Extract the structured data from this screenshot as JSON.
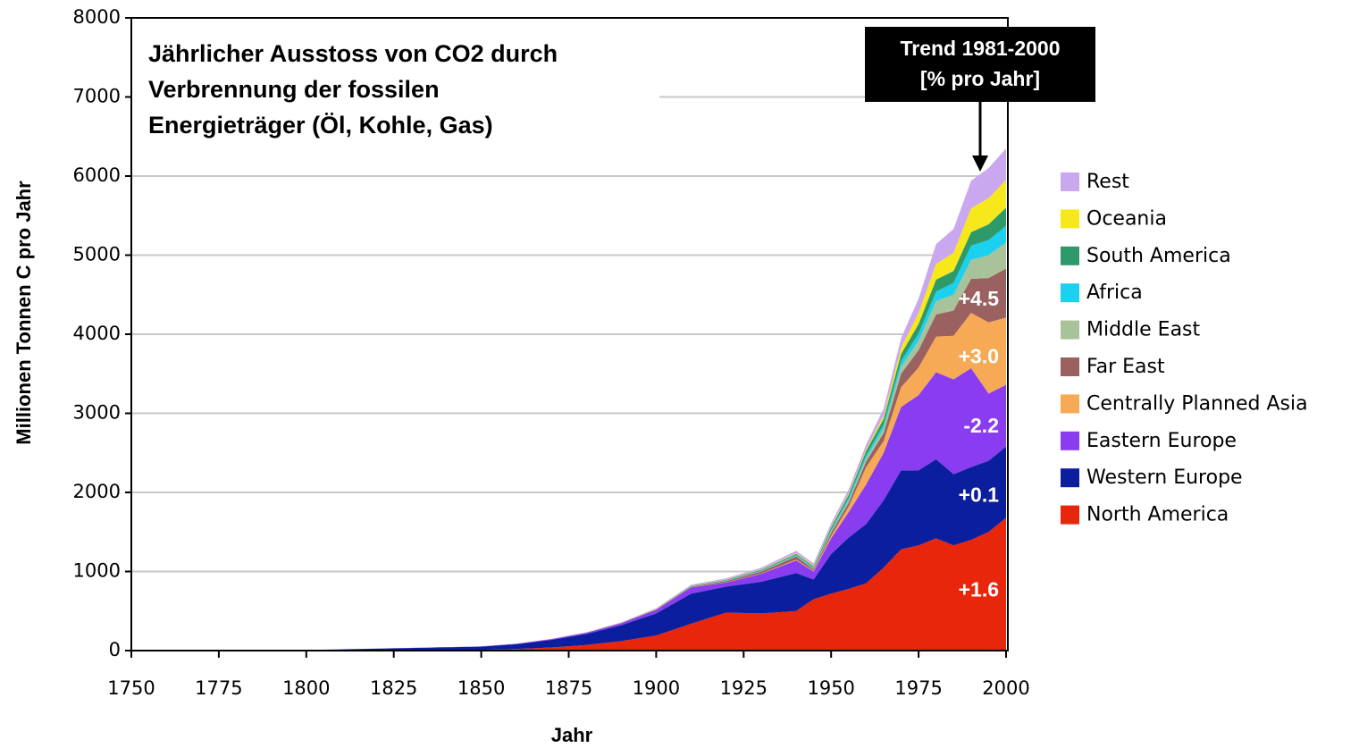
{
  "chart_data": {
    "type": "stacked_area",
    "title_lines": [
      "Jährlicher Ausstoss von CO2 durch",
      "Verbrennung der fossilen",
      "Energieträger (Öl, Kohle, Gas)"
    ],
    "xlabel": "Jahr",
    "ylabel": "Millionen Tonnen C pro Jahr",
    "trend_box": [
      "Trend 1981-2000",
      "[% pro Jahr]"
    ],
    "x": [
      1750,
      1800,
      1850,
      1860,
      1870,
      1880,
      1890,
      1900,
      1910,
      1920,
      1930,
      1940,
      1945,
      1950,
      1955,
      1960,
      1965,
      1970,
      1975,
      1980,
      1985,
      1990,
      1995,
      2000
    ],
    "xlim": [
      1750,
      2000
    ],
    "xticks": [
      1750,
      1775,
      1800,
      1825,
      1850,
      1875,
      1900,
      1925,
      1950,
      1975,
      2000
    ],
    "ylim": [
      0,
      8000
    ],
    "yticks": [
      0,
      1000,
      2000,
      3000,
      4000,
      5000,
      6000,
      7000,
      8000
    ],
    "grid": true,
    "series": [
      {
        "name": "North America",
        "color": "#e8260c",
        "trend_label": "+1.6",
        "values": [
          0,
          1,
          10,
          20,
          40,
          70,
          120,
          190,
          340,
          480,
          470,
          500,
          650,
          720,
          780,
          850,
          1050,
          1280,
          1330,
          1420,
          1330,
          1400,
          1500,
          1680
        ]
      },
      {
        "name": "Western Europe",
        "color": "#0b1f9e",
        "trend_label": "+0.1",
        "values": [
          3,
          6,
          40,
          60,
          95,
          140,
          200,
          280,
          380,
          330,
          400,
          480,
          250,
          500,
          650,
          750,
          850,
          1000,
          950,
          1000,
          900,
          920,
          900,
          900
        ]
      },
      {
        "name": "Eastern Europe",
        "color": "#8a3cf0",
        "trend_label": "-2.2",
        "values": [
          0,
          0,
          3,
          6,
          10,
          15,
          25,
          45,
          80,
          50,
          100,
          160,
          100,
          200,
          320,
          500,
          600,
          800,
          950,
          1100,
          1200,
          1250,
          850,
          780
        ]
      },
      {
        "name": "Centrally Planned Asia",
        "color": "#f7aa55",
        "trend_label": "+3.0",
        "values": [
          0,
          0,
          0,
          0,
          0,
          0,
          0,
          0,
          2,
          3,
          5,
          10,
          10,
          30,
          70,
          220,
          150,
          250,
          350,
          450,
          550,
          700,
          900,
          850
        ]
      },
      {
        "name": "Far East",
        "color": "#9b6060",
        "trend_label": "+4.5",
        "values": [
          0,
          0,
          0,
          0,
          0,
          0,
          2,
          5,
          8,
          15,
          25,
          40,
          20,
          40,
          50,
          70,
          100,
          170,
          220,
          280,
          320,
          430,
          560,
          620
        ]
      },
      {
        "name": "Middle East",
        "color": "#a8c29a",
        "values": [
          0,
          0,
          0,
          0,
          0,
          0,
          0,
          1,
          2,
          3,
          5,
          8,
          10,
          20,
          30,
          40,
          60,
          90,
          120,
          170,
          200,
          240,
          290,
          330
        ]
      },
      {
        "name": "Africa",
        "color": "#1cd0ef",
        "values": [
          0,
          0,
          0,
          0,
          0,
          0,
          1,
          2,
          3,
          5,
          7,
          10,
          10,
          20,
          30,
          40,
          50,
          70,
          90,
          120,
          150,
          180,
          190,
          210
        ]
      },
      {
        "name": "South America",
        "color": "#2e9a6a",
        "values": [
          0,
          0,
          0,
          0,
          0,
          1,
          2,
          3,
          5,
          8,
          10,
          15,
          15,
          30,
          40,
          55,
          70,
          90,
          120,
          150,
          150,
          170,
          200,
          230
        ]
      },
      {
        "name": "Oceania",
        "color": "#f6e81a",
        "values": [
          0,
          0,
          0,
          0,
          1,
          2,
          2,
          3,
          4,
          5,
          6,
          8,
          8,
          10,
          15,
          20,
          40,
          80,
          140,
          200,
          230,
          300,
          330,
          350
        ]
      },
      {
        "name": "Rest",
        "color": "#c9a8ef",
        "values": [
          0,
          0,
          1,
          2,
          3,
          4,
          6,
          8,
          10,
          15,
          20,
          30,
          30,
          40,
          50,
          60,
          90,
          120,
          180,
          250,
          300,
          350,
          380,
          400
        ]
      }
    ]
  }
}
